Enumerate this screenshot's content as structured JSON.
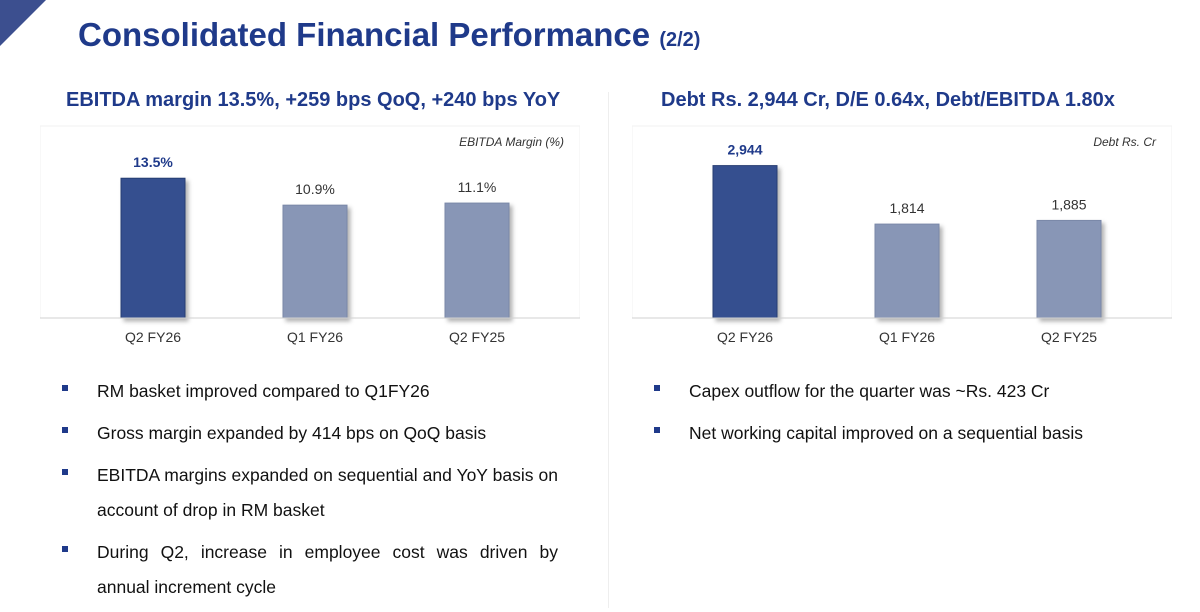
{
  "header": {
    "title": "Consolidated Financial Performance",
    "subtitle": "(2/2)"
  },
  "colors": {
    "title": "#1f3a8a",
    "bar_highlight": "#34508f",
    "bar_default": "#8896b6",
    "bullet": "#1f3a8a"
  },
  "left_panel": {
    "title": "EBITDA margin 13.5%, +259 bps QoQ, +240 bps YoY",
    "bullets": [
      "RM basket improved compared to Q1FY26",
      "Gross margin expanded by 414 bps on QoQ basis",
      "EBITDA margins expanded on sequential and YoY basis on account of drop in RM basket",
      "During Q2, increase in employee cost was driven by annual increment cycle"
    ]
  },
  "right_panel": {
    "title": "Debt Rs. 2,944 Cr, D/E 0.64x, Debt/EBITDA 1.80x",
    "bullets": [
      "Capex outflow for the quarter was ~Rs. 423 Cr",
      "Net working capital improved on a sequential basis"
    ]
  },
  "chart_data": [
    {
      "type": "bar",
      "title": "",
      "legend": "EBITDA Margin (%)",
      "categories": [
        "Q2 FY26",
        "Q1 FY26",
        "Q2 FY25"
      ],
      "values": [
        13.5,
        10.9,
        11.1
      ],
      "value_labels": [
        "13.5%",
        "10.9%",
        "11.1%"
      ],
      "highlight_index": 0,
      "ylim": [
        0,
        17
      ],
      "grid": false
    },
    {
      "type": "bar",
      "title": "",
      "legend": "Debt Rs. Cr",
      "categories": [
        "Q2 FY26",
        "Q1 FY26",
        "Q2 FY25"
      ],
      "values": [
        2944,
        1814,
        1885
      ],
      "value_labels": [
        "2,944",
        "1,814",
        "1,885"
      ],
      "highlight_index": 0,
      "ylim": [
        0,
        3400
      ],
      "grid": false
    }
  ]
}
